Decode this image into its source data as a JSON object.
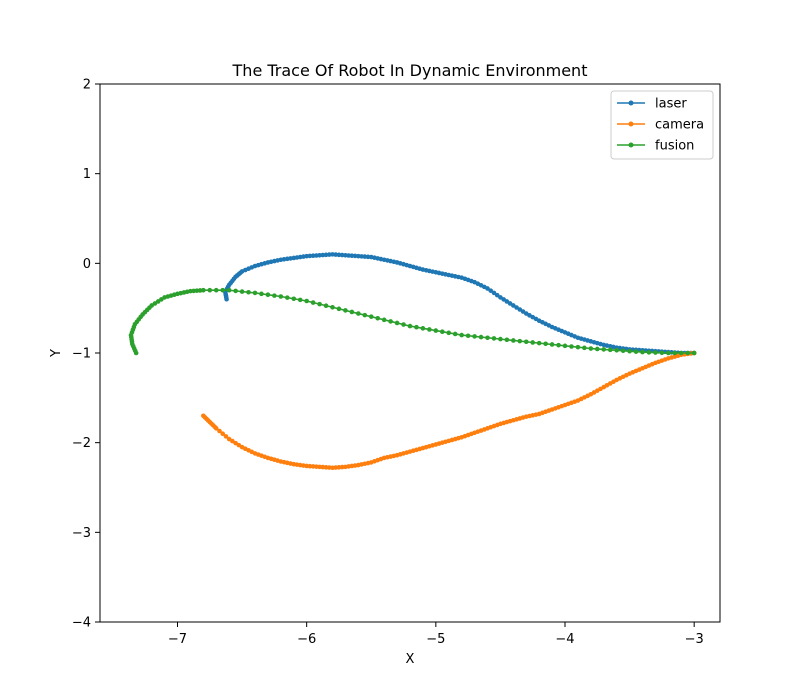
{
  "chart_data": {
    "type": "line",
    "title": "The Trace Of Robot In Dynamic Environment",
    "xlabel": "X",
    "ylabel": "Y",
    "xlim": [
      -7.6,
      -2.8
    ],
    "ylim": [
      -4,
      2
    ],
    "x_ticks": [
      -7,
      -6,
      -5,
      -4,
      -3
    ],
    "y_ticks": [
      2,
      1,
      0,
      -1,
      -2,
      -3,
      -4
    ],
    "x_tick_labels": [
      "−7",
      "−6",
      "−5",
      "−4",
      "−3"
    ],
    "y_tick_labels": [
      "2",
      "1",
      "0",
      "−1",
      "−2",
      "−3",
      "−4"
    ],
    "grid": false,
    "legend_position": "top-right",
    "series": [
      {
        "name": "laser",
        "color": "#1f77b4",
        "points": [
          [
            -3.0,
            -1.0
          ],
          [
            -3.1,
            -1.0
          ],
          [
            -3.2,
            -0.99
          ],
          [
            -3.3,
            -0.98
          ],
          [
            -3.4,
            -0.97
          ],
          [
            -3.5,
            -0.96
          ],
          [
            -3.6,
            -0.94
          ],
          [
            -3.7,
            -0.91
          ],
          [
            -3.8,
            -0.87
          ],
          [
            -3.9,
            -0.83
          ],
          [
            -4.0,
            -0.77
          ],
          [
            -4.1,
            -0.71
          ],
          [
            -4.2,
            -0.64
          ],
          [
            -4.3,
            -0.56
          ],
          [
            -4.4,
            -0.47
          ],
          [
            -4.5,
            -0.38
          ],
          [
            -4.6,
            -0.28
          ],
          [
            -4.7,
            -0.21
          ],
          [
            -4.8,
            -0.16
          ],
          [
            -4.9,
            -0.13
          ],
          [
            -5.0,
            -0.1
          ],
          [
            -5.1,
            -0.07
          ],
          [
            -5.2,
            -0.03
          ],
          [
            -5.3,
            0.01
          ],
          [
            -5.4,
            0.04
          ],
          [
            -5.5,
            0.07
          ],
          [
            -5.6,
            0.08
          ],
          [
            -5.7,
            0.09
          ],
          [
            -5.8,
            0.1
          ],
          [
            -5.9,
            0.09
          ],
          [
            -6.0,
            0.08
          ],
          [
            -6.1,
            0.06
          ],
          [
            -6.2,
            0.04
          ],
          [
            -6.3,
            0.01
          ],
          [
            -6.4,
            -0.03
          ],
          [
            -6.5,
            -0.09
          ],
          [
            -6.55,
            -0.15
          ],
          [
            -6.6,
            -0.24
          ],
          [
            -6.63,
            -0.32
          ],
          [
            -6.62,
            -0.4
          ]
        ]
      },
      {
        "name": "camera",
        "color": "#ff7f0e",
        "points": [
          [
            -3.0,
            -1.0
          ],
          [
            -3.1,
            -1.02
          ],
          [
            -3.2,
            -1.06
          ],
          [
            -3.3,
            -1.11
          ],
          [
            -3.4,
            -1.17
          ],
          [
            -3.5,
            -1.23
          ],
          [
            -3.6,
            -1.3
          ],
          [
            -3.7,
            -1.38
          ],
          [
            -3.8,
            -1.46
          ],
          [
            -3.9,
            -1.53
          ],
          [
            -4.0,
            -1.58
          ],
          [
            -4.1,
            -1.63
          ],
          [
            -4.2,
            -1.68
          ],
          [
            -4.3,
            -1.71
          ],
          [
            -4.4,
            -1.75
          ],
          [
            -4.5,
            -1.79
          ],
          [
            -4.6,
            -1.84
          ],
          [
            -4.7,
            -1.89
          ],
          [
            -4.8,
            -1.94
          ],
          [
            -4.9,
            -1.98
          ],
          [
            -5.0,
            -2.02
          ],
          [
            -5.1,
            -2.06
          ],
          [
            -5.2,
            -2.1
          ],
          [
            -5.3,
            -2.14
          ],
          [
            -5.4,
            -2.17
          ],
          [
            -5.5,
            -2.22
          ],
          [
            -5.6,
            -2.25
          ],
          [
            -5.7,
            -2.27
          ],
          [
            -5.8,
            -2.28
          ],
          [
            -5.9,
            -2.27
          ],
          [
            -6.0,
            -2.26
          ],
          [
            -6.1,
            -2.24
          ],
          [
            -6.2,
            -2.21
          ],
          [
            -6.3,
            -2.17
          ],
          [
            -6.4,
            -2.12
          ],
          [
            -6.5,
            -2.05
          ],
          [
            -6.6,
            -1.96
          ],
          [
            -6.7,
            -1.84
          ],
          [
            -6.75,
            -1.77
          ],
          [
            -6.8,
            -1.7
          ]
        ]
      },
      {
        "name": "fusion",
        "color": "#2ca02c",
        "points": [
          [
            -3.0,
            -1.0
          ],
          [
            -3.2,
            -1.0
          ],
          [
            -3.4,
            -0.99
          ],
          [
            -3.6,
            -0.97
          ],
          [
            -3.8,
            -0.95
          ],
          [
            -4.0,
            -0.92
          ],
          [
            -4.2,
            -0.89
          ],
          [
            -4.4,
            -0.86
          ],
          [
            -4.6,
            -0.83
          ],
          [
            -4.8,
            -0.8
          ],
          [
            -5.0,
            -0.75
          ],
          [
            -5.2,
            -0.7
          ],
          [
            -5.4,
            -0.63
          ],
          [
            -5.6,
            -0.56
          ],
          [
            -5.8,
            -0.49
          ],
          [
            -6.0,
            -0.42
          ],
          [
            -6.2,
            -0.37
          ],
          [
            -6.4,
            -0.33
          ],
          [
            -6.6,
            -0.3
          ],
          [
            -6.8,
            -0.3
          ],
          [
            -6.9,
            -0.31
          ],
          [
            -7.0,
            -0.34
          ],
          [
            -7.1,
            -0.38
          ],
          [
            -7.2,
            -0.47
          ],
          [
            -7.27,
            -0.57
          ],
          [
            -7.33,
            -0.68
          ],
          [
            -7.36,
            -0.8
          ],
          [
            -7.35,
            -0.9
          ],
          [
            -7.32,
            -1.0
          ]
        ]
      }
    ]
  }
}
